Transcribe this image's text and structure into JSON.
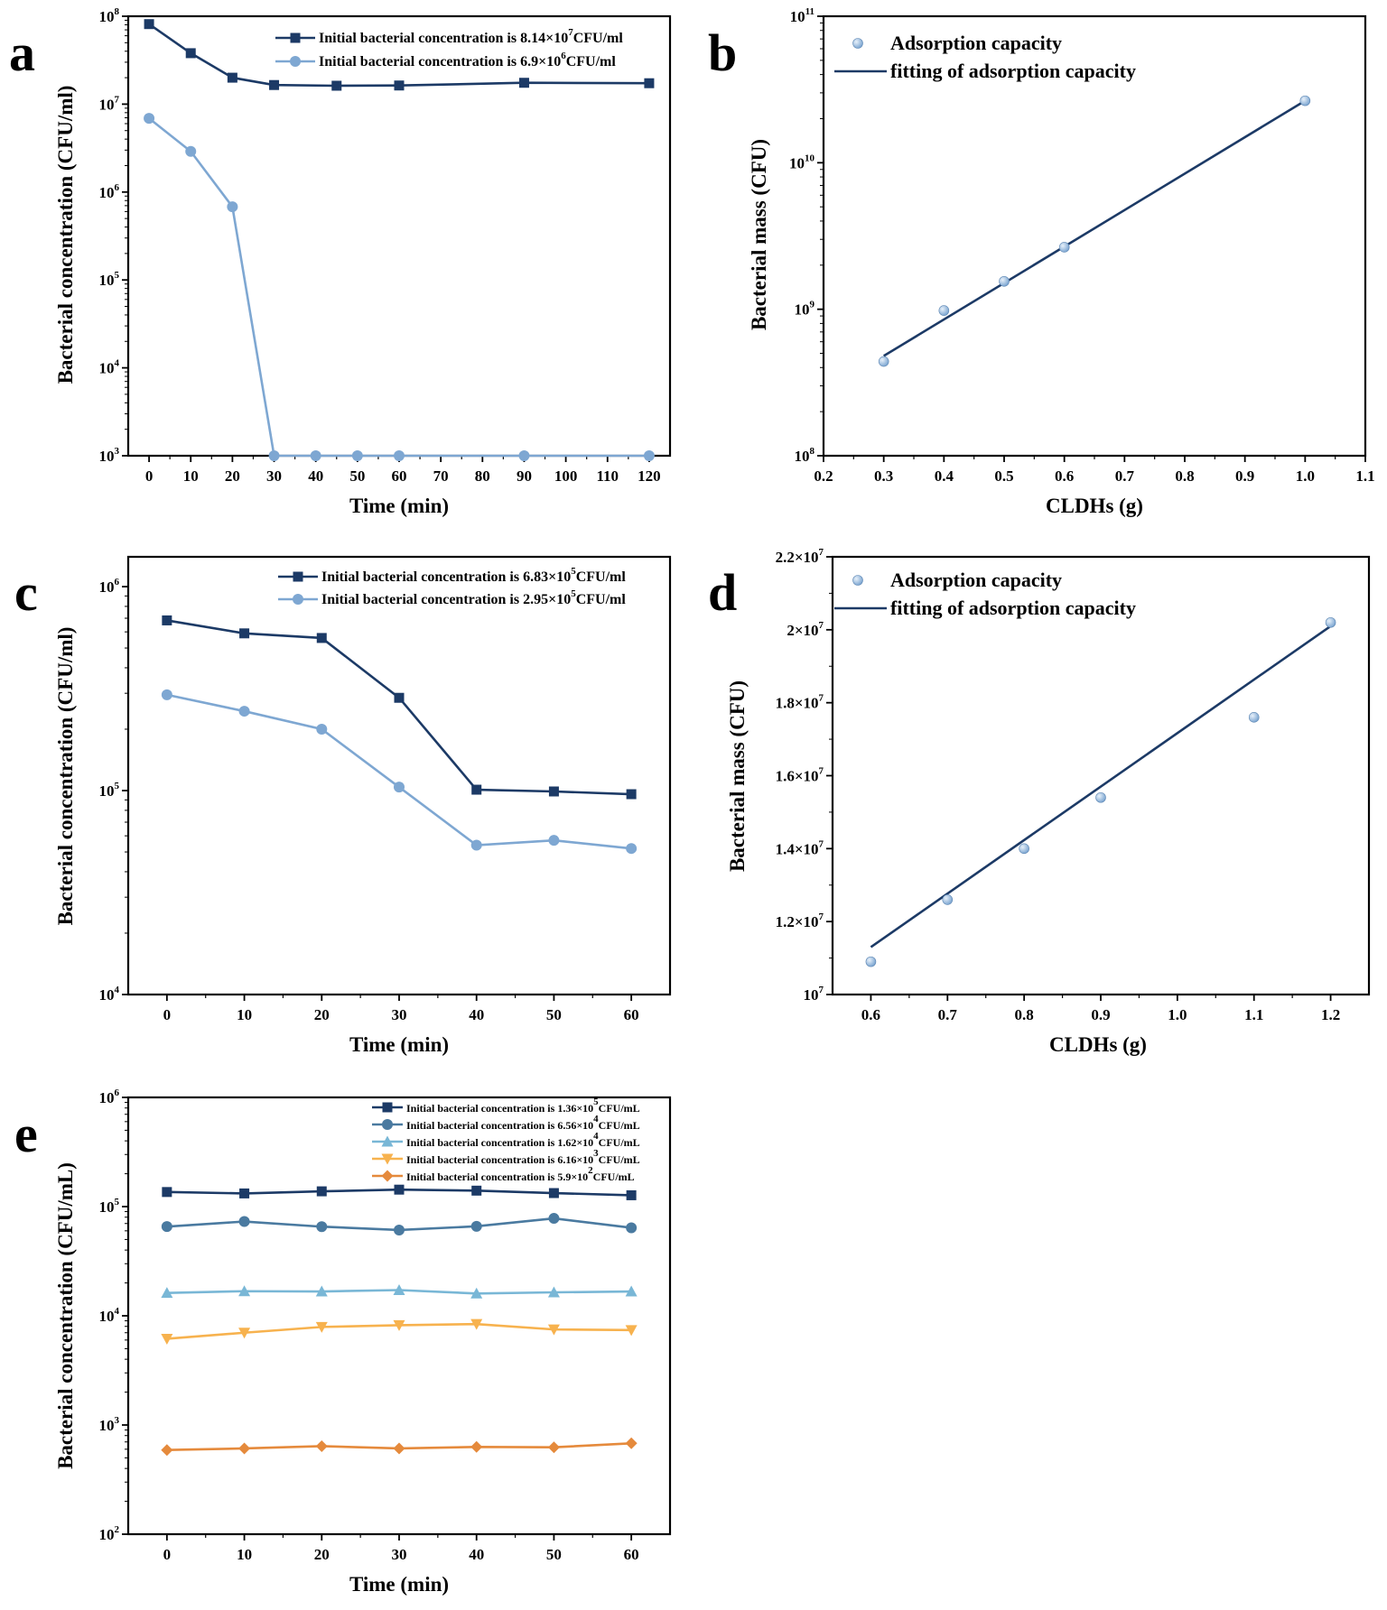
{
  "chart_data": [
    {
      "id": "a",
      "type": "line",
      "panel_label": "a",
      "xlabel": "Time (min)",
      "ylabel": "Bacterial concentration (CFU/ml)",
      "yscale": "log",
      "xlim": [
        -5,
        125
      ],
      "ylim": [
        1000,
        100000000
      ],
      "xticks": [
        0,
        10,
        20,
        30,
        40,
        50,
        60,
        70,
        80,
        90,
        100,
        110,
        120
      ],
      "yticks": [
        {
          "value": 1000,
          "base": "10",
          "exp": "3"
        },
        {
          "value": 10000,
          "base": "10",
          "exp": "4"
        },
        {
          "value": 100000,
          "base": "10",
          "exp": "5"
        },
        {
          "value": 1000000,
          "base": "10",
          "exp": "6"
        },
        {
          "value": 10000000,
          "base": "10",
          "exp": "7"
        },
        {
          "value": 100000000,
          "base": "10",
          "exp": "8"
        }
      ],
      "legend_position": "top-right",
      "series": [
        {
          "name": "Initial bacterial concentration is 8.14×10",
          "name_exp": "7",
          "name_suffix": "CFU/ml",
          "color": "#1c3a66",
          "marker": "square",
          "x": [
            0,
            10,
            20,
            30,
            45,
            60,
            90,
            120
          ],
          "values": [
            81400000,
            38000000,
            20000000,
            16500000,
            16200000,
            16300000,
            17500000,
            17300000
          ]
        },
        {
          "name": "Initial bacterial concentration is 6.9×10",
          "name_exp": "6",
          "name_suffix": "CFU/ml",
          "color": "#7ea7d2",
          "marker": "circle",
          "x": [
            0,
            10,
            20,
            30,
            40,
            50,
            60,
            90,
            120
          ],
          "values": [
            6900000,
            2900000,
            680000,
            1000,
            1000,
            1000,
            1000,
            1000,
            1000
          ]
        }
      ]
    },
    {
      "id": "b",
      "type": "scatter",
      "panel_label": "b",
      "xlabel": "CLDHs (g)",
      "ylabel": "Bacterial mass (CFU)",
      "yscale": "log",
      "xlim": [
        0.2,
        1.1
      ],
      "ylim": [
        100000000,
        100000000000
      ],
      "xticks": [
        "0.2",
        "0.3",
        "0.4",
        "0.5",
        "0.6",
        "0.7",
        "0.8",
        "0.9",
        "1.0",
        "1.1"
      ],
      "yticks": [
        {
          "value": 100000000,
          "base": "10",
          "exp": "8"
        },
        {
          "value": 1000000000,
          "base": "10",
          "exp": "9"
        },
        {
          "value": 10000000000,
          "base": "10",
          "exp": "10"
        },
        {
          "value": 100000000000,
          "base": "10",
          "exp": "11"
        }
      ],
      "legend_position": "top-left",
      "legend_points": "Adsorption capacity",
      "legend_fit": "fitting of adsorption capacity",
      "point_color": "#7ea7d2",
      "fit_color": "#1c3a66",
      "points": {
        "x": [
          0.3,
          0.4,
          0.5,
          0.6,
          1.0
        ],
        "y": [
          440000000,
          980000000,
          1550000000,
          2650000000,
          26500000000
        ]
      },
      "fit": {
        "x": [
          0.3,
          1.0
        ],
        "y": [
          480000000,
          26500000000
        ]
      }
    },
    {
      "id": "c",
      "type": "line",
      "panel_label": "c",
      "xlabel": "Time (min)",
      "ylabel": "Bacterial concentration (CFU/ml)",
      "yscale": "log",
      "xlim": [
        -5,
        65
      ],
      "ylim": [
        10000,
        1400000
      ],
      "xticks": [
        0,
        10,
        20,
        30,
        40,
        50,
        60
      ],
      "yticks": [
        {
          "value": 10000,
          "base": "10",
          "exp": "4"
        },
        {
          "value": 100000,
          "base": "10",
          "exp": "5"
        },
        {
          "value": 1000000,
          "base": "10",
          "exp": "6"
        }
      ],
      "legend_position": "top-right",
      "series": [
        {
          "name": "Initial bacterial concentration is 6.83×10",
          "name_exp": "5",
          "name_suffix": "CFU/ml",
          "color": "#1c3a66",
          "marker": "square",
          "x": [
            0,
            10,
            20,
            30,
            40,
            50,
            60
          ],
          "values": [
            683000,
            590000,
            560000,
            285000,
            101000,
            99000,
            96000
          ]
        },
        {
          "name": "Initial bacterial concentration is 2.95×10",
          "name_exp": "5",
          "name_suffix": "CFU/ml",
          "color": "#7ea7d2",
          "marker": "circle",
          "x": [
            0,
            10,
            20,
            30,
            40,
            50,
            60
          ],
          "values": [
            295000,
            245000,
            200000,
            104000,
            54000,
            57000,
            52000
          ]
        }
      ]
    },
    {
      "id": "d",
      "type": "scatter",
      "panel_label": "d",
      "xlabel": "CLDHs (g)",
      "ylabel": "Bacterial mass (CFU)",
      "yscale": "linear",
      "xlim": [
        0.55,
        1.25
      ],
      "ylim": [
        10000000,
        22000000
      ],
      "xticks": [
        "0.6",
        "0.7",
        "0.8",
        "0.9",
        "1.0",
        "1.1",
        "1.2"
      ],
      "yticks": [
        {
          "value": 10000000,
          "base": "10",
          "exp": "7"
        },
        {
          "value": 12000000,
          "base": "1.2×10",
          "exp": "7"
        },
        {
          "value": 14000000,
          "base": "1.4×10",
          "exp": "7"
        },
        {
          "value": 16000000,
          "base": "1.6×10",
          "exp": "7"
        },
        {
          "value": 18000000,
          "base": "1.8×10",
          "exp": "7"
        },
        {
          "value": 20000000,
          "base": "2×10",
          "exp": "7"
        },
        {
          "value": 22000000,
          "base": "2.2×10",
          "exp": "7"
        }
      ],
      "legend_position": "top-left",
      "legend_points": "Adsorption capacity",
      "legend_fit": "fitting of adsorption capacity",
      "point_color": "#7ea7d2",
      "fit_color": "#1c3a66",
      "points": {
        "x": [
          0.6,
          0.7,
          0.8,
          0.9,
          1.1,
          1.2
        ],
        "y": [
          10900000,
          12600000,
          14000000,
          15400000,
          17600000,
          20200000
        ]
      },
      "fit": {
        "x": [
          0.6,
          1.2
        ],
        "y": [
          11300000,
          20100000
        ]
      }
    },
    {
      "id": "e",
      "type": "line",
      "panel_label": "e",
      "xlabel": "Time (min)",
      "ylabel": "Bacterial concentration (CFU/mL)",
      "yscale": "log",
      "xlim": [
        -5,
        65
      ],
      "ylim": [
        100,
        1000000
      ],
      "xticks": [
        0,
        10,
        20,
        30,
        40,
        50,
        60
      ],
      "yticks": [
        {
          "value": 100,
          "base": "10",
          "exp": "2"
        },
        {
          "value": 1000,
          "base": "10",
          "exp": "3"
        },
        {
          "value": 10000,
          "base": "10",
          "exp": "4"
        },
        {
          "value": 100000,
          "base": "10",
          "exp": "5"
        },
        {
          "value": 1000000,
          "base": "10",
          "exp": "6"
        }
      ],
      "legend_position": "top-right",
      "series": [
        {
          "name": "Initial bacterial concentration is 1.36×10",
          "name_exp": "5",
          "name_suffix": "CFU/mL",
          "color": "#1c3a66",
          "marker": "square",
          "x": [
            0,
            10,
            20,
            30,
            40,
            50,
            60
          ],
          "values": [
            136000,
            132000,
            138000,
            143000,
            140000,
            133000,
            127000
          ]
        },
        {
          "name": "Initial bacterial concentration is 6.56×10",
          "name_exp": "4",
          "name_suffix": "CFU/mL",
          "color": "#4a7aa0",
          "marker": "circle",
          "x": [
            0,
            10,
            20,
            30,
            40,
            50,
            60
          ],
          "values": [
            65600,
            73000,
            65500,
            61000,
            66000,
            78000,
            64000
          ]
        },
        {
          "name": "Initial bacterial concentration is 1.62×10",
          "name_exp": "4",
          "name_suffix": "CFU/mL",
          "color": "#79b7d6",
          "marker": "triangle-up",
          "x": [
            0,
            10,
            20,
            30,
            40,
            50,
            60
          ],
          "values": [
            16200,
            16800,
            16700,
            17200,
            16000,
            16400,
            16700
          ]
        },
        {
          "name": "Initial bacterial concentration is 6.16×10",
          "name_exp": "3",
          "name_suffix": "CFU/mL",
          "color": "#f7b24e",
          "marker": "triangle-down",
          "x": [
            0,
            10,
            20,
            30,
            40,
            50,
            60
          ],
          "values": [
            6160,
            7000,
            7900,
            8200,
            8400,
            7500,
            7400
          ]
        },
        {
          "name": "Initial bacterial concentration is 5.9×10",
          "name_exp": "2",
          "name_suffix": "CFU/mL",
          "color": "#e58a3c",
          "marker": "diamond",
          "x": [
            0,
            10,
            20,
            30,
            40,
            50,
            60
          ],
          "values": [
            590,
            610,
            640,
            610,
            630,
            625,
            680
          ]
        }
      ]
    }
  ]
}
